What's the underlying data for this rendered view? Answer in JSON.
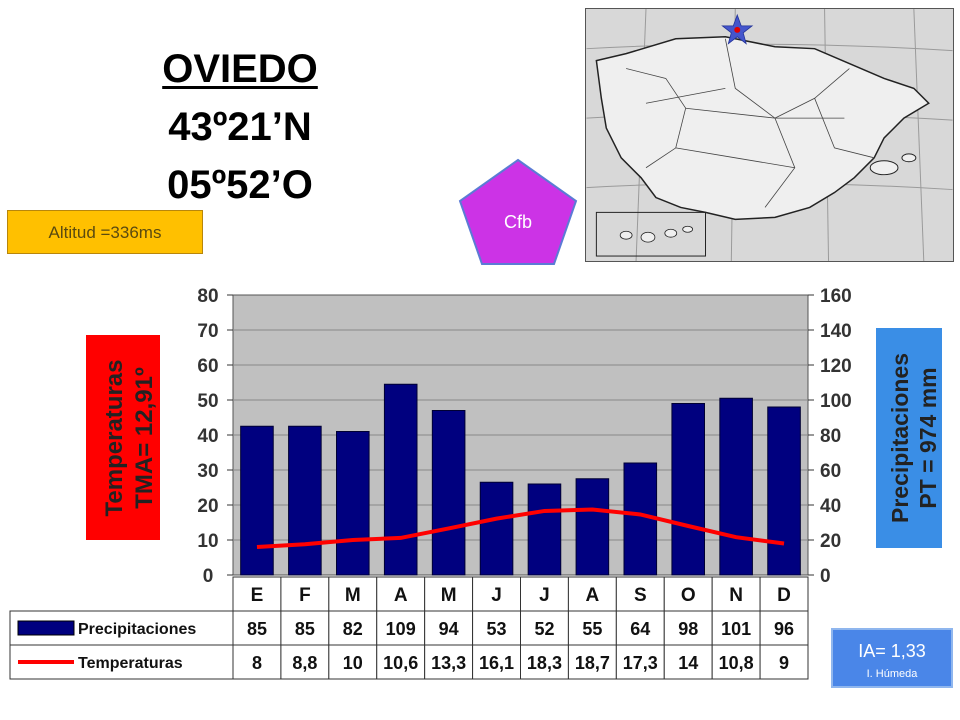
{
  "station": {
    "city": "OVIEDO",
    "latitude": "43º21’N",
    "longitude": "05º52’O",
    "altitude": "Altitud =336ms",
    "koppen": "Cfb"
  },
  "aridity": {
    "index": "IA= 1,33",
    "class": "I. Húmeda"
  },
  "colors": {
    "bars": "#00007f",
    "temperature_line": "#ff0000",
    "plot_bg": "#c0c0c0",
    "temp_badge": "#ff0000",
    "precip_badge": "#3a8ee6",
    "koppen_badge": "#cc33e6",
    "altitude_badge": "#ffc000",
    "index_badge": "#4a86e8"
  },
  "chart_data": {
    "type": "bar",
    "categories": [
      "E",
      "F",
      "M",
      "A",
      "M",
      "J",
      "J",
      "A",
      "S",
      "O",
      "N",
      "D"
    ],
    "series": [
      {
        "name": "Precipitaciones",
        "kind": "bar",
        "axis": "right",
        "values": [
          85,
          85,
          82,
          109,
          94,
          53,
          52,
          55,
          64,
          98,
          101,
          96
        ],
        "labels": [
          "85",
          "85",
          "82",
          "109",
          "94",
          "53",
          "52",
          "55",
          "64",
          "98",
          "101",
          "96"
        ]
      },
      {
        "name": "Temperaturas",
        "kind": "line",
        "axis": "left",
        "values": [
          8,
          8.8,
          10,
          10.6,
          13.3,
          16.1,
          18.3,
          18.7,
          17.3,
          14,
          10.8,
          9
        ],
        "labels": [
          "8",
          "8,8",
          "10",
          "10,6",
          "13,3",
          "16,1",
          "18,3",
          "18,7",
          "17,3",
          "14",
          "10,8",
          "9"
        ]
      }
    ],
    "left_axis": {
      "ticks": [
        "80",
        "70",
        "60",
        "50",
        "40",
        "30",
        "20",
        "10",
        "0"
      ],
      "ylim": [
        0,
        80
      ],
      "label_line1": "Temperaturas",
      "label_line2": "TMA=  12,91º"
    },
    "right_axis": {
      "ticks": [
        "160",
        "140",
        "120",
        "100",
        "80",
        "60",
        "40",
        "20",
        "0"
      ],
      "ylim": [
        0,
        160
      ],
      "label_line1": "Precipitaciones",
      "label_line2": "PT = 974 mm"
    },
    "grid": "horizontal",
    "legend_position": "table-left"
  }
}
